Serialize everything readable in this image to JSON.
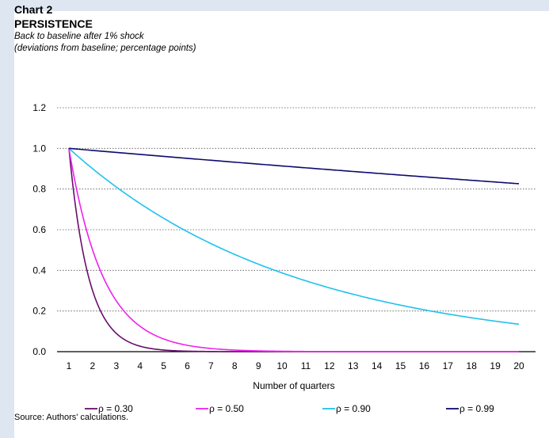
{
  "header": {
    "chart_number": "Chart 2",
    "title": "PERSISTENCE",
    "subtitle": "Back to baseline after 1% shock",
    "subtitle_note": "(deviations from baseline; percentage points)"
  },
  "source": "Source: Authors' calculations.",
  "chart_data": {
    "type": "line",
    "xlabel": "Number of quarters",
    "ylabel": "",
    "x": [
      1,
      2,
      3,
      4,
      5,
      6,
      7,
      8,
      9,
      10,
      11,
      12,
      13,
      14,
      15,
      16,
      17,
      18,
      19,
      20
    ],
    "xlim": [
      1,
      20
    ],
    "ylim": [
      0,
      1.2
    ],
    "yticks": [
      "0.0",
      "0.2",
      "0.4",
      "0.6",
      "0.8",
      "1.0",
      "1.2"
    ],
    "xticks": [
      "1",
      "2",
      "3",
      "4",
      "5",
      "6",
      "7",
      "8",
      "9",
      "10",
      "11",
      "12",
      "13",
      "14",
      "15",
      "16",
      "17",
      "18",
      "19",
      "20"
    ],
    "grid": "horizontal-dotted",
    "legend": "bottom",
    "series": [
      {
        "name": "ρ = 0.30",
        "color": "#6a0d6e",
        "rho": 0.3,
        "values": [
          1.0,
          0.3,
          0.09,
          0.027,
          0.0081,
          0.0024,
          0.0007,
          0.0002,
          0.0001,
          0.0,
          0.0,
          0.0,
          0.0,
          0.0,
          0.0,
          0.0,
          0.0,
          0.0,
          0.0,
          0.0
        ]
      },
      {
        "name": "ρ = 0.50",
        "color": "#ee22ee",
        "rho": 0.5,
        "values": [
          1.0,
          0.5,
          0.25,
          0.125,
          0.0625,
          0.0313,
          0.0156,
          0.0078,
          0.0039,
          0.002,
          0.001,
          0.0005,
          0.0002,
          0.0001,
          0.0001,
          0.0,
          0.0,
          0.0,
          0.0,
          0.0
        ]
      },
      {
        "name": "ρ = 0.90",
        "color": "#1fc1ee",
        "rho": 0.9,
        "values": [
          1.0,
          0.9,
          0.81,
          0.729,
          0.656,
          0.59,
          0.531,
          0.478,
          0.43,
          0.387,
          0.349,
          0.314,
          0.282,
          0.254,
          0.229,
          0.206,
          0.185,
          0.167,
          0.15,
          0.135
        ]
      },
      {
        "name": "ρ = 0.99",
        "color": "#0b0b6e",
        "rho": 0.99,
        "values": [
          1.0,
          0.99,
          0.98,
          0.97,
          0.961,
          0.951,
          0.941,
          0.932,
          0.923,
          0.914,
          0.904,
          0.895,
          0.886,
          0.878,
          0.869,
          0.86,
          0.851,
          0.843,
          0.835,
          0.826
        ]
      }
    ]
  }
}
